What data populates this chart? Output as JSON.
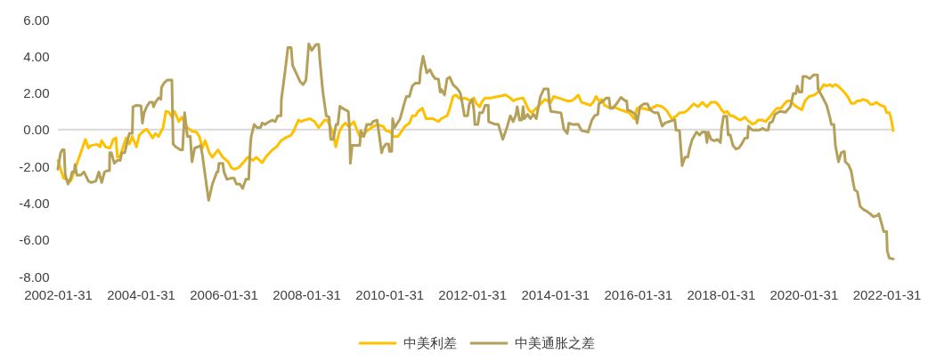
{
  "chart_data": {
    "type": "line",
    "xlim": [
      "2002-01-31",
      "2022-03-31"
    ],
    "xticks": [
      "2002-01-31",
      "2004-01-31",
      "2006-01-31",
      "2008-01-31",
      "2010-01-31",
      "2012-01-31",
      "2014-01-31",
      "2016-01-31",
      "2018-01-31",
      "2020-01-31",
      "2022-01-31"
    ],
    "ylim": [
      -8,
      6
    ],
    "yticks": [
      {
        "value": -8,
        "label": "-8.00"
      },
      {
        "value": -6,
        "label": "-6.00"
      },
      {
        "value": -4,
        "label": "-4.00"
      },
      {
        "value": -2,
        "label": "-2.00"
      },
      {
        "value": 0,
        "label": "0.00"
      },
      {
        "value": 2,
        "label": "2.00"
      },
      {
        "value": 4,
        "label": "4.00"
      },
      {
        "value": 6,
        "label": "6.00"
      }
    ],
    "ref_lines": [
      {
        "axis": "y",
        "value": 0,
        "color": "#d9d9d9"
      }
    ],
    "legend": "bottom",
    "series": [
      {
        "name": "中美利差",
        "color": "#ffc000",
        "x": [
          "2002-01-31",
          "2002-03-21",
          "2002-05-24",
          "2002-10-01",
          "2002-10-27",
          "2002-11-21",
          "2003-01-12",
          "2003-02-06",
          "2003-02-21",
          "2003-03-27",
          "2003-05-06",
          "2003-06-03",
          "2003-06-27",
          "2003-07-09",
          "2003-08-03",
          "2003-09-24",
          "2003-10-24",
          "2003-11-18",
          "2003-12-24",
          "2004-01-18",
          "2004-03-01",
          "2004-03-24",
          "2004-04-18",
          "2004-05-15",
          "2004-06-09",
          "2004-07-06",
          "2004-08-15",
          "2004-09-09",
          "2004-10-06",
          "2004-11-01",
          "2004-11-24",
          "2005-01-01",
          "2005-01-27",
          "2005-03-18",
          "2005-04-27",
          "2005-06-06",
          "2005-07-01",
          "2005-07-27",
          "2005-08-21",
          "2005-09-27",
          "2005-10-24",
          "2005-12-12",
          "2006-01-24",
          "2006-03-12",
          "2006-04-09",
          "2006-05-03",
          "2006-06-12",
          "2006-07-18",
          "2006-09-01",
          "2006-10-18",
          "2006-11-15",
          "2007-01-06",
          "2007-02-15",
          "2007-04-06",
          "2007-05-12",
          "2007-06-21",
          "2007-07-27",
          "2007-09-18",
          "2007-10-12",
          "2007-11-21",
          "2007-12-18",
          "2008-01-12",
          "2008-03-03",
          "2008-04-12",
          "2008-05-18",
          "2008-07-09",
          "2008-08-03",
          "2008-09-01",
          "2008-09-24",
          "2008-10-15",
          "2008-11-15",
          "2008-12-12",
          "2009-01-09",
          "2009-02-03",
          "2009-03-01",
          "2009-03-24",
          "2009-04-18",
          "2009-05-15",
          "2009-06-09",
          "2009-07-06",
          "2009-08-24",
          "2009-10-15",
          "2009-12-06",
          "2010-01-01",
          "2010-02-12",
          "2010-03-06",
          "2010-04-15",
          "2010-05-06",
          "2010-06-18",
          "2010-07-27",
          "2010-08-21",
          "2010-09-18",
          "2010-10-12",
          "2010-11-18",
          "2010-12-21",
          "2011-02-18",
          "2011-04-09",
          "2011-05-03",
          "2011-06-24",
          "2011-07-18",
          "2011-08-15",
          "2011-09-09",
          "2011-10-06",
          "2011-11-01",
          "2011-11-24",
          "2012-01-15",
          "2012-02-15",
          "2012-03-09",
          "2012-04-06",
          "2012-05-01",
          "2012-05-24",
          "2012-07-15",
          "2012-09-18",
          "2012-11-21",
          "2013-01-01",
          "2013-01-27",
          "2013-02-21",
          "2013-04-24",
          "2013-05-18",
          "2013-06-12",
          "2013-07-09",
          "2013-08-03",
          "2013-09-01",
          "2013-10-09",
          "2013-11-03",
          "2013-12-24",
          "2014-01-18",
          "2014-03-01",
          "2014-05-15",
          "2014-06-21",
          "2014-07-15",
          "2014-08-24",
          "2014-09-21",
          "2014-11-01",
          "2014-12-06",
          "2015-01-01",
          "2015-01-27",
          "2015-02-21",
          "2015-03-18",
          "2015-04-12",
          "2015-05-06",
          "2015-06-06",
          "2015-07-01",
          "2015-07-27",
          "2015-09-03",
          "2015-10-12",
          "2015-11-18",
          "2015-12-27",
          "2016-01-24",
          "2016-03-12",
          "2016-05-03",
          "2016-06-24",
          "2016-07-18",
          "2016-09-01",
          "2016-10-06",
          "2016-11-01",
          "2016-11-24",
          "2017-01-06",
          "2017-02-01",
          "2017-03-06",
          "2017-04-01",
          "2017-05-12",
          "2017-06-06",
          "2017-07-15",
          "2017-08-21",
          "2017-10-01",
          "2017-11-06",
          "2017-12-18",
          "2018-01-12",
          "2018-02-06",
          "2018-03-03",
          "2018-03-27",
          "2018-04-24",
          "2018-05-18",
          "2018-06-24",
          "2018-07-24",
          "2018-09-01",
          "2018-09-24",
          "2018-11-03",
          "2018-12-01",
          "2018-12-24",
          "2019-02-03",
          "2019-03-01",
          "2019-04-06",
          "2019-05-15",
          "2019-06-09",
          "2019-07-15",
          "2019-08-15",
          "2019-09-09",
          "2019-10-06",
          "2019-11-12",
          "2019-12-21",
          "2020-01-15",
          "2020-02-12",
          "2020-03-18",
          "2020-05-06",
          "2020-06-06",
          "2020-07-01",
          "2020-07-27",
          "2020-08-21",
          "2020-09-18",
          "2020-10-12",
          "2020-11-06",
          "2020-12-03",
          "2020-12-27",
          "2021-02-03",
          "2021-03-01",
          "2021-03-24",
          "2021-04-24",
          "2021-05-18",
          "2021-06-12",
          "2021-07-09",
          "2021-08-15",
          "2021-09-09",
          "2021-10-06",
          "2021-11-01",
          "2021-12-09",
          "2022-01-15",
          "2022-02-01",
          "2022-02-24",
          "2022-03-09",
          "2022-03-31"
        ],
        "values": [
          -1.67,
          -2.64,
          -2.8,
          -0.53,
          -1.0,
          -0.86,
          -0.8,
          -0.94,
          -0.6,
          -0.94,
          -1.0,
          -0.53,
          -0.45,
          -1.5,
          -1.42,
          -0.45,
          -0.78,
          -0.37,
          -0.94,
          -0.3,
          -0.05,
          0.03,
          -0.2,
          -0.45,
          -0.2,
          -0.37,
          0.1,
          1.0,
          0.95,
          0.68,
          1.0,
          0.44,
          0.68,
          0.11,
          -0.08,
          -0.13,
          -0.37,
          -1.0,
          -0.6,
          -1.26,
          -1.5,
          -1.1,
          -1.5,
          -1.75,
          -2.07,
          -2.15,
          -2.07,
          -1.83,
          -1.5,
          -1.67,
          -1.5,
          -1.8,
          -1.42,
          -1.1,
          -0.94,
          -0.6,
          -0.45,
          -0.3,
          -0.05,
          0.52,
          0.44,
          0.52,
          0.6,
          0.44,
          0.11,
          0.52,
          0.52,
          0.11,
          -0.21,
          -0.94,
          -0.13,
          0.19,
          0.36,
          0.19,
          0.28,
          0.44,
          0.03,
          -0.37,
          -0.37,
          -0.13,
          0.11,
          0.28,
          0.19,
          -0.05,
          -0.13,
          -0.37,
          -0.37,
          -0.21,
          0.19,
          0.36,
          0.76,
          0.76,
          1.0,
          1.17,
          0.6,
          0.6,
          0.44,
          0.6,
          0.76,
          1.17,
          1.81,
          1.89,
          1.73,
          1.65,
          1.73,
          1.57,
          1.73,
          1.41,
          1.25,
          1.57,
          1.73,
          1.73,
          1.81,
          1.89,
          1.73,
          1.57,
          1.65,
          1.73,
          1.41,
          1.08,
          0.92,
          1.08,
          1.25,
          1.49,
          1.65,
          1.49,
          1.81,
          1.73,
          1.57,
          1.57,
          1.65,
          1.89,
          1.49,
          1.41,
          1.33,
          1.49,
          1.81,
          1.57,
          1.65,
          1.33,
          1.25,
          1.17,
          1.25,
          1.17,
          1.08,
          1.0,
          0.92,
          0.6,
          1.17,
          1.17,
          1.08,
          1.25,
          1.33,
          1.25,
          1.08,
          0.84,
          0.6,
          0.76,
          0.92,
          0.92,
          1.0,
          1.25,
          1.41,
          1.25,
          1.49,
          1.25,
          1.49,
          1.49,
          1.33,
          1.08,
          0.92,
          1.0,
          0.76,
          0.76,
          0.6,
          0.52,
          0.68,
          0.52,
          0.31,
          0.36,
          0.52,
          0.52,
          0.44,
          0.68,
          1.0,
          1.17,
          1.17,
          1.41,
          1.57,
          1.57,
          1.33,
          1.17,
          1.08,
          1.57,
          1.81,
          1.89,
          2.05,
          2.22,
          2.46,
          2.38,
          2.46,
          2.35,
          2.46,
          2.35,
          2.22,
          1.97,
          1.73,
          1.44,
          1.44,
          1.57,
          1.57,
          1.65,
          1.57,
          1.38,
          1.38,
          1.49,
          1.33,
          1.25,
          0.92,
          0.92,
          0.68,
          -0.05
        ]
      },
      {
        "name": "中美通胀之差",
        "color": "#b5a05a",
        "x": [
          "2002-01-31",
          "2002-02-24",
          "2002-03-09",
          "2002-03-27",
          "2002-04-06",
          "2002-05-01",
          "2002-05-24",
          "2002-06-06",
          "2002-06-24",
          "2002-07-01",
          "2002-07-18",
          "2002-08-21",
          "2002-09-18",
          "2002-10-27",
          "2002-11-21",
          "2003-01-01",
          "2003-01-27",
          "2003-02-21",
          "2003-03-18",
          "2003-04-12",
          "2003-05-01",
          "2003-05-03",
          "2003-05-18",
          "2003-06-12",
          "2003-07-09",
          "2003-08-03",
          "2003-08-18",
          "2003-09-12",
          "2003-10-09",
          "2003-10-24",
          "2003-11-18",
          "2003-11-24",
          "2003-12-24",
          "2004-02-03",
          "2004-02-15",
          "2004-03-01",
          "2004-03-24",
          "2004-04-18",
          "2004-05-15",
          "2004-05-24",
          "2004-06-09",
          "2004-07-06",
          "2004-07-27",
          "2004-08-01",
          "2004-08-24",
          "2004-09-21",
          "2004-11-01",
          "2004-11-12",
          "2004-12-06",
          "2005-01-15",
          "2005-02-03",
          "2005-02-21",
          "2005-03-18",
          "2005-04-12",
          "2005-04-27",
          "2005-05-21",
          "2005-06-18",
          "2005-07-12",
          "2005-07-27",
          "2005-08-21",
          "2005-09-21",
          "2005-10-24",
          "2005-12-03",
          "2005-12-12",
          "2005-12-21",
          "2006-01-24",
          "2006-02-03",
          "2006-03-01",
          "2006-04-09",
          "2006-05-03",
          "2006-05-24",
          "2006-06-24",
          "2006-07-18",
          "2006-08-15",
          "2006-09-09",
          "2006-09-24",
          "2006-10-01",
          "2006-10-27",
          "2006-11-24",
          "2006-12-21",
          "2007-01-06",
          "2007-02-01",
          "2007-02-15",
          "2007-03-09",
          "2007-04-06",
          "2007-05-01",
          "2007-05-24",
          "2007-06-21",
          "2007-06-24",
          "2007-07-27",
          "2007-08-21",
          "2007-09-18",
          "2007-10-01",
          "2007-11-06",
          "2007-12-06",
          "2008-01-01",
          "2008-01-27",
          "2008-02-21",
          "2008-03-18",
          "2008-04-24",
          "2008-05-18",
          "2008-06-01",
          "2008-06-24",
          "2008-07-24",
          "2008-08-18",
          "2008-09-01",
          "2008-09-24",
          "2008-10-18",
          "2008-11-03",
          "2008-11-21",
          "2008-12-12",
          "2009-01-09",
          "2009-02-03",
          "2009-02-15",
          "2009-02-21",
          "2009-03-09",
          "2009-05-15",
          "2009-05-24",
          "2009-06-21",
          "2009-07-15",
          "2009-08-24",
          "2009-09-09",
          "2009-10-15",
          "2009-11-01",
          "2009-11-24",
          "2009-12-06",
          "2010-01-01",
          "2010-01-24",
          "2010-02-01",
          "2010-02-21",
          "2010-03-01",
          "2010-03-18",
          "2010-04-12",
          "2010-05-06",
          "2010-06-18",
          "2010-07-01",
          "2010-07-27",
          "2010-08-21",
          "2010-09-18",
          "2010-10-24",
          "2010-11-01",
          "2010-11-24",
          "2010-12-12",
          "2010-12-27",
          "2011-01-24",
          "2011-02-18",
          "2011-03-12",
          "2011-04-09",
          "2011-04-24",
          "2011-05-03",
          "2011-06-01",
          "2011-06-24",
          "2011-07-18",
          "2011-08-15",
          "2011-09-24",
          "2011-10-18",
          "2011-11-01",
          "2011-11-24",
          "2011-12-21",
          "2012-01-06",
          "2012-02-01",
          "2012-02-15",
          "2012-02-24",
          "2012-03-21",
          "2012-04-06",
          "2012-05-01",
          "2012-05-24",
          "2012-06-21",
          "2012-06-24",
          "2012-08-12",
          "2012-09-18",
          "2012-10-27",
          "2012-12-06",
          "2013-01-01",
          "2013-01-27",
          "2013-02-21",
          "2013-03-03",
          "2013-03-24",
          "2013-04-12",
          "2013-04-24",
          "2013-05-06",
          "2013-06-03",
          "2013-06-27",
          "2013-07-24",
          "2013-08-18",
          "2013-09-01",
          "2013-09-24",
          "2013-10-24",
          "2013-12-01",
          "2013-12-12",
          "2013-12-24",
          "2014-03-24",
          "2014-04-18",
          "2014-05-18",
          "2014-06-01",
          "2014-07-06",
          "2014-08-24",
          "2014-09-21",
          "2014-11-18",
          "2014-12-21",
          "2015-01-15",
          "2015-02-12",
          "2015-02-21",
          "2015-04-01",
          "2015-04-27",
          "2015-05-21",
          "2015-06-01",
          "2015-06-24",
          "2015-07-27",
          "2015-09-03",
          "2015-10-12",
          "2015-10-24",
          "2015-11-01",
          "2015-12-03",
          "2016-01-09",
          "2016-01-24",
          "2016-02-18",
          "2016-03-24",
          "2016-04-24",
          "2016-05-18",
          "2016-06-24",
          "2016-07-27",
          "2016-09-01",
          "2016-09-24",
          "2016-11-01",
          "2016-12-09",
          "2016-12-21",
          "2017-01-01",
          "2017-02-01",
          "2017-02-24",
          "2017-03-21",
          "2017-04-15",
          "2017-05-01",
          "2017-05-24",
          "2017-07-01",
          "2017-07-27",
          "2017-08-21",
          "2017-09-18",
          "2017-10-01",
          "2017-10-12",
          "2017-11-06",
          "2017-12-06",
          "2018-01-01",
          "2018-01-27",
          "2018-02-06",
          "2018-02-24",
          "2018-03-24",
          "2018-04-06",
          "2018-04-24",
          "2018-05-18",
          "2018-06-12",
          "2018-07-09",
          "2018-08-03",
          "2018-09-01",
          "2018-09-24",
          "2018-10-01",
          "2018-11-03",
          "2019-01-09",
          "2019-02-03",
          "2019-03-01",
          "2019-03-24",
          "2019-04-06",
          "2019-05-01",
          "2019-05-24",
          "2019-07-06",
          "2019-08-24",
          "2019-10-06",
          "2019-11-01",
          "2019-11-24",
          "2019-12-06",
          "2019-12-24",
          "2020-01-15",
          "2020-01-24",
          "2020-02-21",
          "2020-03-24",
          "2020-04-27",
          "2020-06-01",
          "2020-06-06",
          "2020-07-12",
          "2020-08-21",
          "2020-09-18",
          "2020-10-01",
          "2020-10-24",
          "2020-11-06",
          "2020-12-03",
          "2020-12-27",
          "2021-01-24",
          "2021-02-01",
          "2021-03-01",
          "2021-03-24",
          "2021-04-24",
          "2021-05-18",
          "2021-06-12",
          "2021-07-09",
          "2021-08-03",
          "2021-09-09",
          "2021-10-06",
          "2021-11-15",
          "2021-11-24",
          "2022-01-06",
          "2022-02-01",
          "2022-02-06",
          "2022-02-24",
          "2022-03-31"
        ],
        "values": [
          -2.15,
          -1.26,
          -1.1,
          -1.1,
          -2.48,
          -2.96,
          -2.64,
          -2.3,
          -2.3,
          -1.9,
          -2.48,
          -2.48,
          -2.3,
          -2.8,
          -2.88,
          -2.8,
          -2.3,
          -2.88,
          -2.3,
          -2.23,
          -2.23,
          -1.26,
          -1.26,
          -1.83,
          -1.67,
          -1.67,
          -1.26,
          -1.26,
          -0.53,
          -0.2,
          -0.2,
          1.25,
          1.33,
          1.3,
          0.36,
          0.92,
          1.25,
          1.49,
          1.49,
          1.25,
          1.49,
          1.73,
          1.65,
          2.3,
          2.54,
          2.7,
          2.7,
          -0.78,
          -0.94,
          -1.1,
          -1.1,
          0.92,
          -0.37,
          -0.37,
          -1.75,
          -1.0,
          -0.94,
          -0.86,
          -1.34,
          -2.48,
          -3.85,
          -2.96,
          -2.3,
          -2.3,
          -1.83,
          -1.83,
          -2.3,
          -2.7,
          -2.64,
          -2.64,
          -2.96,
          -2.96,
          -3.2,
          -2.7,
          -2.7,
          -0.86,
          -0.37,
          0.28,
          0.11,
          0.11,
          0.36,
          0.28,
          0.36,
          0.44,
          0.52,
          0.44,
          0.76,
          0.76,
          1.65,
          3.19,
          4.48,
          4.48,
          3.5,
          3.03,
          2.62,
          2.45,
          2.7,
          4.68,
          4.32,
          4.64,
          4.64,
          3.51,
          2.05,
          0.76,
          0.68,
          -0.53,
          -0.53,
          0.28,
          0.28,
          1.28,
          1.17,
          1.08,
          1.0,
          -0.05,
          -1.83,
          -0.86,
          -0.86,
          -0.05,
          -0.37,
          0.28,
          0.28,
          0.44,
          0.52,
          -0.21,
          -1.26,
          -1.0,
          -0.78,
          -0.78,
          -1.18,
          -1.18,
          0.6,
          0.11,
          0.36,
          0.6,
          1.57,
          1.81,
          1.81,
          2.38,
          2.54,
          2.54,
          3.19,
          4.0,
          3.51,
          3.1,
          3.27,
          2.95,
          2.78,
          2.75,
          2.05,
          2.2,
          1.89,
          2.78,
          2.86,
          2.46,
          2.22,
          2.0,
          1.57,
          0.76,
          0.76,
          1.41,
          1.65,
          1.08,
          0.28,
          0.28,
          0.92,
          0.92,
          1.33,
          1.33,
          0.44,
          0.31,
          0.28,
          -0.53,
          0.19,
          0.76,
          0.44,
          0.84,
          1.25,
          0.52,
          0.52,
          1.25,
          0.6,
          0.84,
          0.6,
          0.84,
          0.6,
          1.08,
          1.81,
          2.22,
          2.22,
          1.41,
          1.0,
          0.92,
          0.03,
          -0.21,
          0.36,
          0.28,
          0.29,
          -0.05,
          -0.13,
          0.52,
          0.76,
          0.84,
          1.41,
          1.57,
          1.73,
          1.73,
          1.17,
          1.17,
          1.41,
          1.76,
          1.57,
          1.57,
          1.08,
          1.0,
          0.84,
          0.36,
          1.25,
          1.41,
          1.41,
          1.08,
          0.92,
          0.92,
          0.19,
          0.36,
          0.44,
          0.52,
          0.55,
          -0.02,
          -0.05,
          -1.96,
          -1.5,
          -1.5,
          -1.02,
          -0.53,
          -0.13,
          -0.29,
          -0.13,
          -0.13,
          -0.7,
          -0.13,
          -0.53,
          -0.61,
          -0.53,
          -0.7,
          0.03,
          0.73,
          0.73,
          -0.29,
          -0.29,
          -0.86,
          -1.05,
          -1.0,
          -0.78,
          -0.45,
          -0.45,
          0.19,
          -0.02,
          -0.02,
          0.08,
          -0.02,
          -0.02,
          0.36,
          0.44,
          0.84,
          1.0,
          0.95,
          1.25,
          1.97,
          1.97,
          2.38,
          2.05,
          2.05,
          2.9,
          2.9,
          2.78,
          2.98,
          2.98,
          2.22,
          1.81,
          1.33,
          0.68,
          0.28,
          0.28,
          -0.86,
          -1.75,
          -1.26,
          -1.18,
          -1.75,
          -1.91,
          -2.23,
          -3.28,
          -3.37,
          -4.17,
          -4.34,
          -4.42,
          -4.58,
          -4.74,
          -4.66,
          -4.58,
          -5.55,
          -5.55,
          -6.6,
          -7.0,
          -7.04
        ]
      }
    ]
  }
}
